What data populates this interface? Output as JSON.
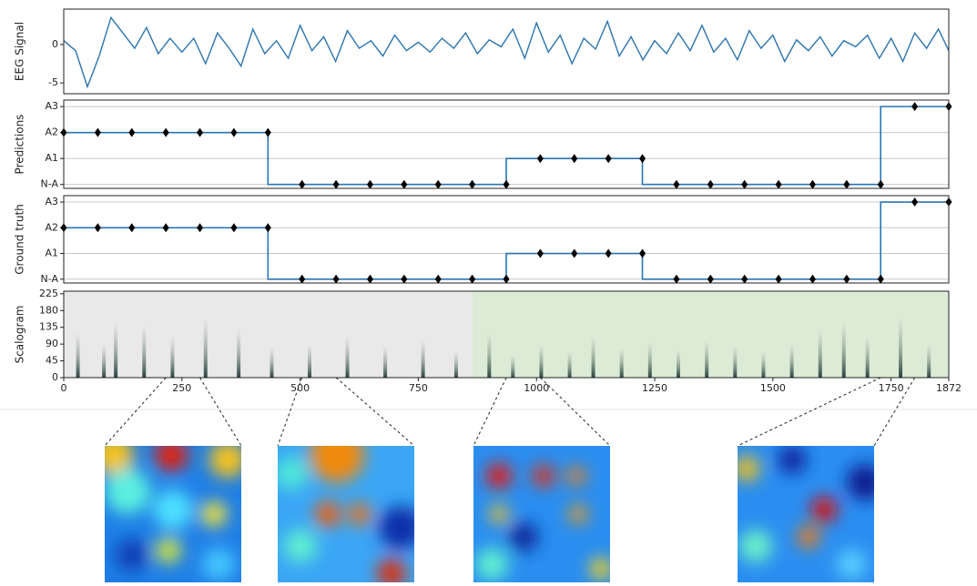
{
  "chart_data": [
    {
      "type": "line",
      "ylabel": "EEG Signal",
      "color": "#2b74b0",
      "xlim": [
        0,
        1872
      ],
      "ylim": [
        -6.4,
        4.6
      ],
      "yticks": [
        -5,
        0
      ],
      "x": [
        0,
        25,
        50,
        75,
        100,
        125,
        150,
        175,
        200,
        225,
        250,
        275,
        300,
        325,
        350,
        375,
        400,
        425,
        450,
        475,
        500,
        525,
        550,
        575,
        600,
        625,
        650,
        675,
        700,
        725,
        750,
        775,
        800,
        825,
        850,
        875,
        900,
        925,
        950,
        975,
        1000,
        1025,
        1050,
        1075,
        1100,
        1125,
        1150,
        1175,
        1200,
        1225,
        1250,
        1275,
        1300,
        1325,
        1350,
        1375,
        1400,
        1425,
        1450,
        1475,
        1500,
        1525,
        1550,
        1575,
        1600,
        1625,
        1650,
        1675,
        1700,
        1725,
        1750,
        1775,
        1800,
        1825,
        1850,
        1872
      ],
      "values": [
        0.5,
        -0.8,
        -5.5,
        -1.5,
        3.5,
        1.5,
        -0.5,
        2.2,
        -1.2,
        0.8,
        -1,
        0.8,
        -2.5,
        1.5,
        -0.5,
        -2.8,
        2,
        -1.2,
        0.5,
        -1.8,
        2.5,
        -0.8,
        1,
        -2.2,
        1.8,
        -0.5,
        0.5,
        -1.5,
        1.2,
        -0.8,
        0.3,
        -1,
        0.8,
        -0.5,
        1.5,
        -1.2,
        0.6,
        -0.3,
        2,
        -1.8,
        2.8,
        -1,
        1.2,
        -2.5,
        0.8,
        -0.6,
        3,
        -1.5,
        1,
        -2,
        0.5,
        -1.2,
        1.5,
        -0.8,
        2.5,
        -1,
        0.8,
        -2,
        1.8,
        -0.5,
        1.2,
        -2.2,
        0.6,
        -0.8,
        1,
        -1.5,
        0.5,
        -0.3,
        1.2,
        -1.8,
        0.8,
        -2.2,
        1.5,
        -0.5,
        2,
        -0.8
      ]
    },
    {
      "type": "step",
      "ylabel": "Predictions",
      "color": "#2b74b0",
      "marker_color": "#000000",
      "grid": true,
      "xlim": [
        0,
        1872
      ],
      "ylim": [
        -0.15,
        3.25
      ],
      "yticks": [
        {
          "value": 0,
          "label": "N-A"
        },
        {
          "value": 1,
          "label": "A1"
        },
        {
          "value": 2,
          "label": "A2"
        },
        {
          "value": 3,
          "label": "A3"
        }
      ],
      "x": [
        0,
        72,
        144,
        216,
        288,
        360,
        432,
        504,
        576,
        648,
        720,
        792,
        864,
        936,
        1008,
        1080,
        1152,
        1224,
        1296,
        1368,
        1440,
        1512,
        1584,
        1656,
        1728,
        1800,
        1872
      ],
      "values": [
        2,
        2,
        2,
        2,
        2,
        2,
        2,
        0,
        0,
        0,
        0,
        0,
        0,
        0,
        1,
        1,
        1,
        1,
        0,
        0,
        0,
        0,
        0,
        0,
        0,
        3,
        3
      ]
    },
    {
      "type": "step",
      "ylabel": "Ground truth",
      "color": "#2b74b0",
      "marker_color": "#000000",
      "grid": true,
      "xlim": [
        0,
        1872
      ],
      "ylim": [
        -0.15,
        3.25
      ],
      "yticks": [
        {
          "value": 0,
          "label": "N-A"
        },
        {
          "value": 1,
          "label": "A1"
        },
        {
          "value": 2,
          "label": "A2"
        },
        {
          "value": 3,
          "label": "A3"
        }
      ],
      "x": [
        0,
        72,
        144,
        216,
        288,
        360,
        432,
        504,
        576,
        648,
        720,
        792,
        864,
        936,
        1008,
        1080,
        1152,
        1224,
        1296,
        1368,
        1440,
        1512,
        1584,
        1656,
        1728,
        1800,
        1872
      ],
      "values": [
        2,
        2,
        2,
        2,
        2,
        2,
        2,
        0,
        0,
        0,
        0,
        0,
        0,
        0,
        1,
        1,
        1,
        1,
        0,
        0,
        0,
        0,
        0,
        0,
        0,
        3,
        3
      ]
    },
    {
      "type": "heatmap",
      "ylabel": "Scalogram",
      "xlim": [
        0,
        1872
      ],
      "ylim": [
        0,
        232
      ],
      "yticks": [
        0,
        45,
        90,
        135,
        180,
        225
      ],
      "xticks": [
        0,
        250,
        500,
        750,
        1000,
        1250,
        1500,
        1750,
        1872
      ],
      "regions": [
        {
          "start": 0,
          "end": 864,
          "color": "#e9e9e9"
        },
        {
          "start": 864,
          "end": 1872,
          "color": "#dcebd6"
        }
      ],
      "streaks": {
        "x": [
          30,
          85,
          110,
          170,
          230,
          300,
          370,
          440,
          520,
          600,
          680,
          760,
          830,
          900,
          950,
          1010,
          1070,
          1120,
          1180,
          1240,
          1300,
          1360,
          1420,
          1480,
          1540,
          1600,
          1650,
          1700,
          1770,
          1830
        ],
        "values": [
          120,
          90,
          150,
          140,
          110,
          160,
          130,
          80,
          90,
          110,
          85,
          100,
          70,
          120,
          60,
          90,
          70,
          110,
          80,
          95,
          75,
          100,
          85,
          70,
          90,
          130,
          150,
          110,
          160,
          90
        ]
      }
    }
  ],
  "zoom_windows": [
    {
      "start": 216,
      "end": 288
    },
    {
      "start": 504,
      "end": 576
    },
    {
      "start": 936,
      "end": 1008
    },
    {
      "start": 1728,
      "end": 1800
    }
  ]
}
